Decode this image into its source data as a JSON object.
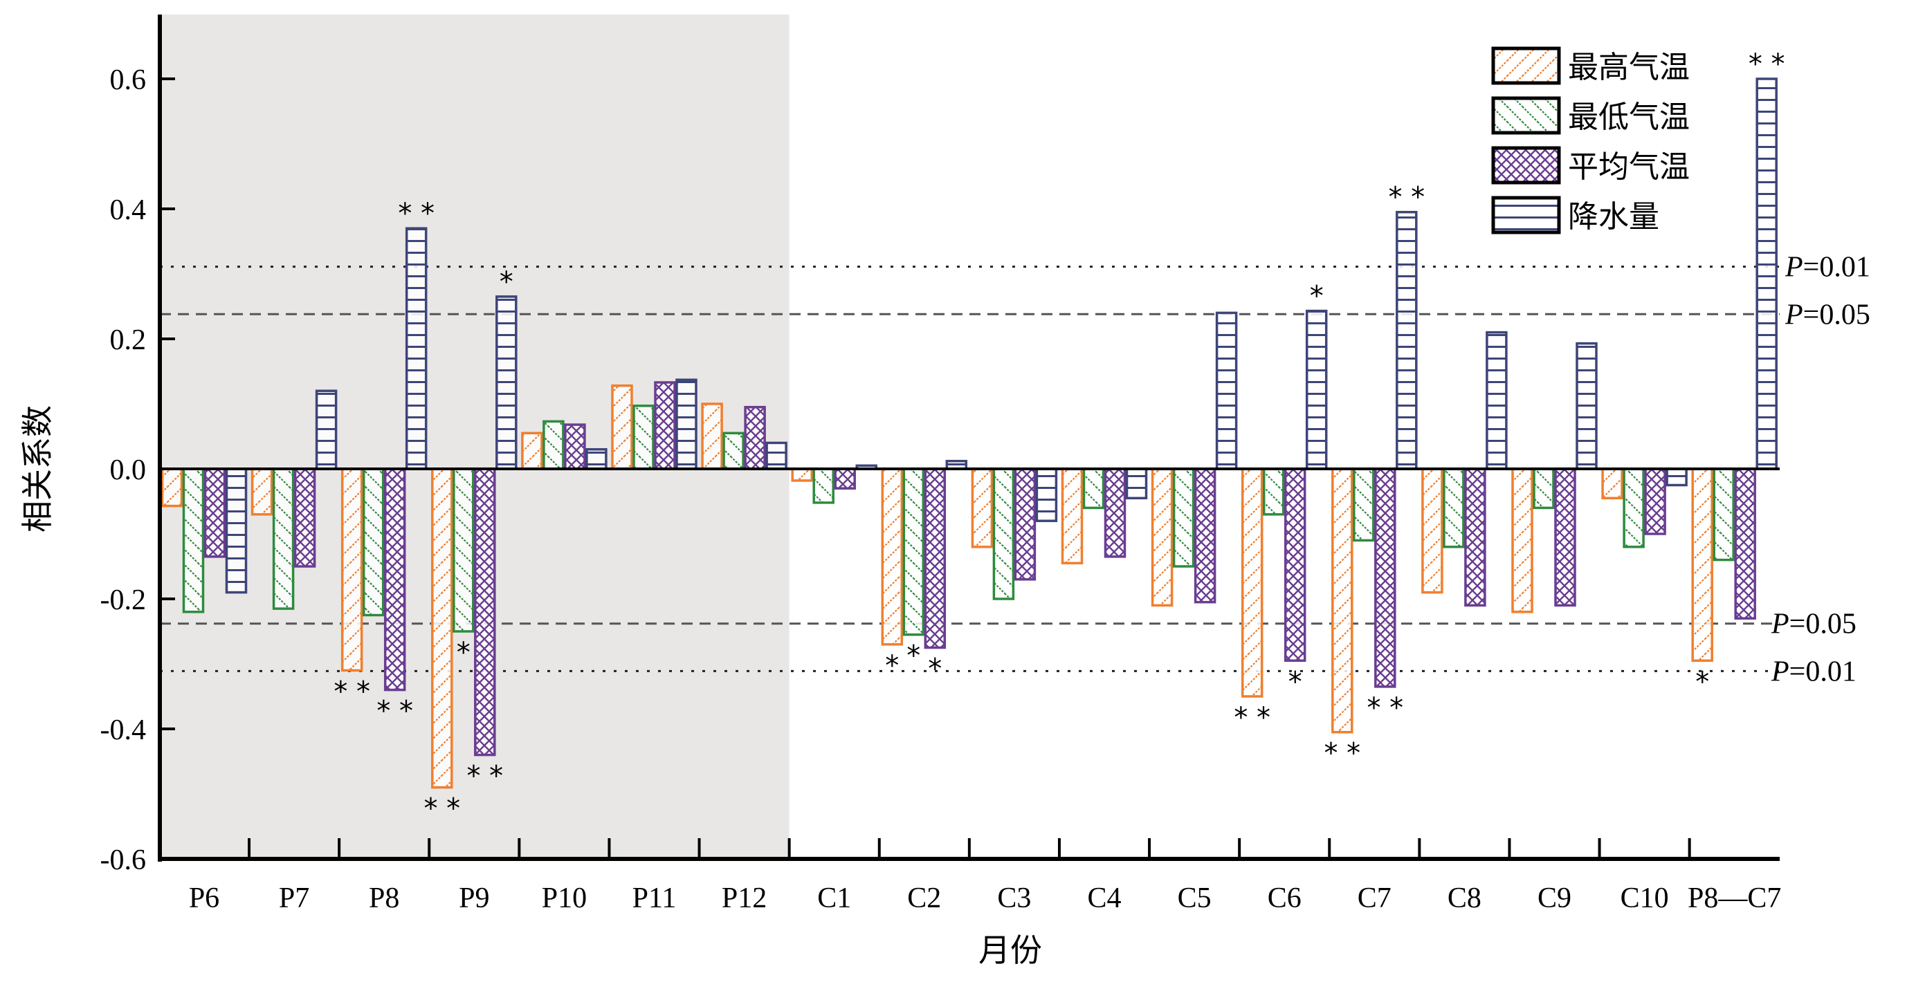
{
  "chart_data": {
    "type": "bar",
    "title": "",
    "xlabel": "月份",
    "ylabel": "相关系数",
    "ylim": [
      -0.6,
      0.7
    ],
    "yticks": [
      -0.6,
      -0.4,
      -0.2,
      0.0,
      0.2,
      0.4,
      0.6
    ],
    "ytick_labels": [
      "-0.6",
      "-0.4",
      "-0.2",
      "0.0",
      "0.2",
      "0.4",
      "0.6"
    ],
    "grid": false,
    "legend_position": "top-right",
    "categories": [
      "P6",
      "P7",
      "P8",
      "P9",
      "P10",
      "P11",
      "P12",
      "C1",
      "C2",
      "C3",
      "C4",
      "C5",
      "C6",
      "C7",
      "C8",
      "C9",
      "C10",
      "P8—C7"
    ],
    "shaded_region": {
      "from": "P6",
      "to": "P12",
      "color": "#e8e7e6"
    },
    "series": [
      {
        "name": "最高气温",
        "color": "#f07f2e",
        "pattern": "diagonal-forward",
        "values": [
          -0.057,
          -0.07,
          -0.31,
          -0.49,
          0.055,
          0.128,
          0.1,
          -0.018,
          -0.27,
          -0.12,
          -0.145,
          -0.21,
          -0.35,
          -0.405,
          -0.19,
          -0.22,
          -0.045,
          -0.295
        ],
        "significance": [
          "",
          "",
          "**",
          "**",
          "",
          "",
          "",
          "",
          "*",
          "",
          "",
          "",
          "**",
          "**",
          "",
          "",
          "",
          "*"
        ]
      },
      {
        "name": "最低气温",
        "color": "#2e8b3e",
        "pattern": "diagonal-back",
        "values": [
          -0.22,
          -0.215,
          -0.225,
          -0.25,
          0.073,
          0.097,
          0.055,
          -0.052,
          -0.255,
          -0.2,
          -0.06,
          -0.15,
          -0.07,
          -0.11,
          -0.12,
          -0.06,
          -0.12,
          -0.14
        ],
        "significance": [
          "",
          "",
          "",
          "*",
          "",
          "",
          "",
          "",
          "*",
          "",
          "",
          "",
          "",
          "",
          "",
          "",
          "",
          ""
        ]
      },
      {
        "name": "平均气温",
        "color": "#6a3d91",
        "pattern": "crosshatch",
        "values": [
          -0.135,
          -0.15,
          -0.34,
          -0.44,
          0.068,
          0.133,
          0.095,
          -0.03,
          -0.275,
          -0.17,
          -0.135,
          -0.205,
          -0.295,
          -0.335,
          -0.21,
          -0.21,
          -0.1,
          -0.23
        ],
        "significance": [
          "",
          "",
          "**",
          "**",
          "",
          "",
          "",
          "",
          "*",
          "",
          "",
          "",
          "*",
          "**",
          "",
          "",
          "",
          ""
        ]
      },
      {
        "name": "降水量",
        "color": "#3d4578",
        "pattern": "horizontal",
        "values": [
          -0.19,
          0.12,
          0.37,
          0.265,
          0.03,
          0.137,
          0.04,
          0.005,
          0.012,
          -0.08,
          -0.045,
          0.24,
          0.243,
          0.395,
          0.21,
          0.193,
          -0.025,
          0.6
        ],
        "significance": [
          "",
          "",
          "**",
          "*",
          "",
          "",
          "",
          "",
          "",
          "",
          "",
          "",
          "*",
          "**",
          "",
          "",
          "",
          "**"
        ]
      }
    ],
    "reference_lines": [
      {
        "value": 0.311,
        "style": "dotted",
        "label": "P=0.01"
      },
      {
        "value": 0.238,
        "style": "dashed",
        "label": "P=0.05"
      },
      {
        "value": -0.238,
        "style": "dashed",
        "label": "P=0.05"
      },
      {
        "value": -0.311,
        "style": "dotted",
        "label": "P=0.01"
      }
    ]
  }
}
